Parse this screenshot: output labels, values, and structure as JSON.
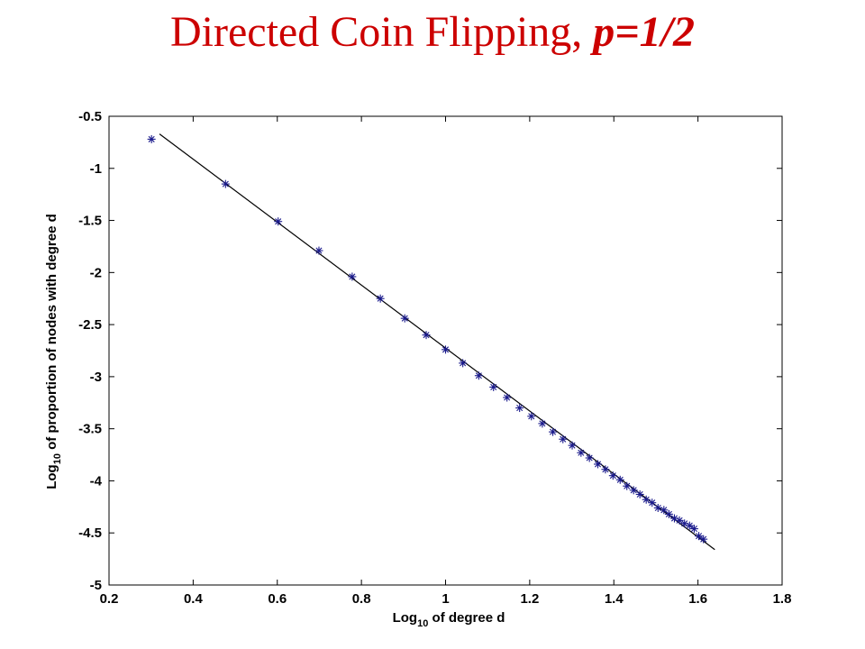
{
  "slide": {
    "title_main": "Directed Coin Flipping, ",
    "title_param": "p=1/2"
  },
  "chart_data": {
    "type": "scatter",
    "xlabel_base": "Log",
    "xlabel_sub": "10",
    "xlabel_rest": " of degree d",
    "ylabel_base": "Log",
    "ylabel_sub": "10",
    "ylabel_rest": " of proportion of nodes with degree d",
    "xlim": [
      0.2,
      1.8
    ],
    "ylim": [
      -5,
      -0.5
    ],
    "xticks": [
      0.2,
      0.4,
      0.6,
      0.8,
      1,
      1.2,
      1.4,
      1.6,
      1.8
    ],
    "xtick_labels": [
      "0.2",
      "0.4",
      "0.6",
      "0.8",
      "1",
      "1.2",
      "1.4",
      "1.6",
      "1.8"
    ],
    "yticks": [
      -0.5,
      -1,
      -1.5,
      -2,
      -2.5,
      -3,
      -3.5,
      -4,
      -4.5,
      -5
    ],
    "ytick_labels": [
      "-0.5",
      "-1",
      "-1.5",
      "-2",
      "-2.5",
      "-3",
      "-3.5",
      "-4",
      "-4.5",
      "-5"
    ],
    "grid": false,
    "marker": "asterisk",
    "marker_color": "#1a1a8c",
    "line_color": "#000000",
    "series": [
      {
        "x": [
          0.301,
          0.477,
          0.602,
          0.699,
          0.778,
          0.845,
          0.903,
          0.954,
          1.0,
          1.041,
          1.079,
          1.114,
          1.146,
          1.176,
          1.204,
          1.23,
          1.255,
          1.279,
          1.301,
          1.322,
          1.342,
          1.362,
          1.38,
          1.398,
          1.415,
          1.431,
          1.447,
          1.462,
          1.477,
          1.491,
          1.505,
          1.519,
          1.531,
          1.544,
          1.556,
          1.568,
          1.58,
          1.591,
          1.602,
          1.613
        ],
        "y": [
          -0.72,
          -1.15,
          -1.51,
          -1.79,
          -2.04,
          -2.25,
          -2.44,
          -2.6,
          -2.74,
          -2.87,
          -2.99,
          -3.1,
          -3.2,
          -3.3,
          -3.38,
          -3.45,
          -3.53,
          -3.6,
          -3.66,
          -3.73,
          -3.78,
          -3.84,
          -3.89,
          -3.95,
          -3.99,
          -4.05,
          -4.09,
          -4.13,
          -4.18,
          -4.21,
          -4.26,
          -4.28,
          -4.32,
          -4.36,
          -4.38,
          -4.41,
          -4.43,
          -4.46,
          -4.53,
          -4.56
        ]
      }
    ],
    "fit_line": {
      "x": [
        0.32,
        1.64
      ],
      "y": [
        -0.67,
        -4.66
      ]
    }
  }
}
